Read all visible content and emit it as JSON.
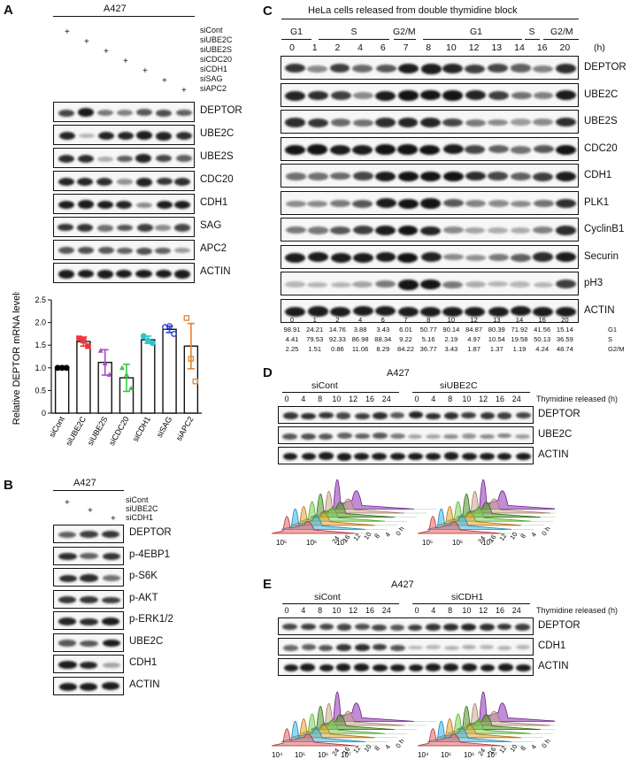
{
  "panelA": {
    "letter": "A",
    "cell_line": "A427",
    "treatments": [
      "siCont",
      "siUBE2C",
      "siUBE2S",
      "siCDC20",
      "siCDH1",
      "siSAG",
      "siAPC2"
    ],
    "proteins": [
      "DEPTOR",
      "UBE2C",
      "UBE2S",
      "CDC20",
      "CDH1",
      "SAG",
      "APC2",
      "ACTIN"
    ]
  },
  "panelB": {
    "letter": "B",
    "cell_line": "A427",
    "treatments": [
      "siCont",
      "siUBE2C",
      "siCDH1"
    ],
    "proteins": [
      "DEPTOR",
      "p-4EBP1",
      "p-S6K",
      "p-AKT",
      "p-ERK1/2",
      "UBE2C",
      "CDH1",
      "ACTIN"
    ]
  },
  "panelC": {
    "letter": "C",
    "title": "HeLa cells released from double thymidine block",
    "phases": [
      "G1",
      "S",
      "G2/M",
      "G1",
      "S",
      "G2/M"
    ],
    "hours": [
      "0",
      "1",
      "2",
      "4",
      "6",
      "7",
      "8",
      "10",
      "12",
      "13",
      "14",
      "16",
      "20"
    ],
    "hours_unit": "(h)",
    "proteins": [
      "DEPTOR",
      "UBE2C",
      "UBE2S",
      "CDC20",
      "CDH1",
      "PLK1",
      "CyclinB1",
      "Securin",
      "pH3",
      "ACTIN"
    ],
    "table": {
      "rows": [
        "G1",
        "S",
        "G2/M"
      ],
      "G1": [
        "98.91",
        "24.21",
        "14.76",
        "3.88",
        "3.43",
        "6.01",
        "50.77",
        "90.14",
        "84.87",
        "80.39",
        "71.92",
        "41.56",
        "15.14"
      ],
      "S": [
        "4.41",
        "79.53",
        "92.33",
        "86.98",
        "88.34",
        "9.22",
        "5.16",
        "2.19",
        "4.97",
        "10.54",
        "19.58",
        "50.13",
        "36.59"
      ],
      "G2M": [
        "2.25",
        "1.51",
        "0.86",
        "11.06",
        "8.29",
        "84.22",
        "36.77",
        "3.43",
        "1.87",
        "1.37",
        "1.19",
        "4.24",
        "48.74"
      ]
    }
  },
  "panelD": {
    "letter": "D",
    "cell_line": "A427",
    "groups": [
      "siCont",
      "siUBE2C"
    ],
    "hours": [
      "0",
      "4",
      "8",
      "10",
      "12",
      "16",
      "24"
    ],
    "axis_caption": "Thymidine released (h)",
    "proteins": [
      "DEPTOR",
      "UBE2C",
      "ACTIN"
    ],
    "flow_x_ticks": [
      "10⁵",
      "10⁶",
      "10⁷"
    ],
    "flow_depth_ticks": [
      "24",
      "16",
      "12",
      "10",
      "8",
      "4",
      "0 h"
    ]
  },
  "panelE": {
    "letter": "E",
    "cell_line": "A427",
    "groups": [
      "siCont",
      "siCDH1"
    ],
    "hours": [
      "0",
      "4",
      "8",
      "10",
      "12",
      "16",
      "24"
    ],
    "axis_caption": "Thymidine released (h)",
    "proteins": [
      "DEPTOR",
      "CDH1",
      "ACTIN"
    ],
    "flow_x_ticks": [
      "10⁴",
      "10⁵",
      "10⁶",
      "10⁷"
    ],
    "flow_depth_ticks": [
      "24",
      "16",
      "12",
      "10",
      "8",
      "4",
      "0 h"
    ]
  },
  "chart_data": {
    "type": "bar",
    "ylabel": "Relative DEPTOR mRNA levels",
    "ylim": [
      0,
      2.5
    ],
    "yticks": [
      "0",
      "0.5",
      "1.0",
      "1.5",
      "2.0",
      "2.5"
    ],
    "categories": [
      "siCont",
      "siUBE2C",
      "siUBE2S",
      "siCDC20",
      "siCDH1",
      "siSAG",
      "siAPC2"
    ],
    "values": [
      1.0,
      1.58,
      1.12,
      0.78,
      1.62,
      1.85,
      1.48
    ],
    "errors": [
      0.0,
      0.1,
      0.28,
      0.3,
      0.08,
      0.07,
      0.5
    ],
    "points": [
      [
        1.0,
        1.0,
        1.0
      ],
      [
        1.65,
        1.6,
        1.48
      ],
      [
        1.38,
        1.1,
        0.85
      ],
      [
        1.0,
        0.85,
        0.55
      ],
      [
        1.7,
        1.6,
        1.55
      ],
      [
        1.9,
        1.92,
        1.75
      ],
      [
        2.1,
        1.2,
        0.7
      ]
    ],
    "colors": [
      "#000000",
      "#e8383b",
      "#a64cc9",
      "#3ac94a",
      "#2dc6c8",
      "#2a3fd1",
      "#e8812a"
    ]
  }
}
